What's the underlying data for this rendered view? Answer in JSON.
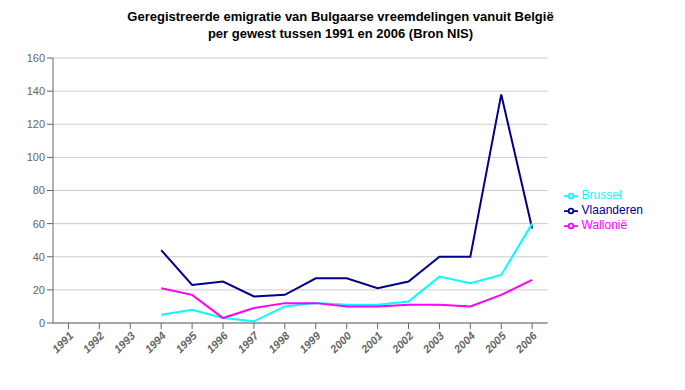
{
  "chart_data": {
    "type": "line",
    "title": "Geregistreerde emigratie van Bulgaarse vreemdelingen vanuit België\nper gewest tussen 1991 en 2006 (Bron NIS)",
    "x": [
      1991,
      1992,
      1993,
      1994,
      1995,
      1996,
      1997,
      1998,
      1999,
      2000,
      2001,
      2002,
      2003,
      2004,
      2005,
      2006
    ],
    "series": [
      {
        "name": "Vlaanderen",
        "color": "#00008B",
        "values": [
          null,
          null,
          null,
          44,
          23,
          25,
          16,
          17,
          27,
          27,
          21,
          25,
          40,
          40,
          138,
          57
        ]
      },
      {
        "name": "Brussel",
        "color": "#00FFFF",
        "values": [
          null,
          null,
          null,
          5,
          8,
          3,
          1,
          10,
          12,
          11,
          11,
          13,
          28,
          24,
          29,
          60
        ]
      },
      {
        "name": "Wallonië",
        "color": "#FF00FF",
        "values": [
          null,
          null,
          null,
          21,
          17,
          3,
          9,
          12,
          12,
          10,
          10,
          11,
          11,
          10,
          17,
          26
        ]
      }
    ],
    "xlim": [
      1990.5,
      2006.5
    ],
    "xticks": [
      1991,
      1992,
      1993,
      1994,
      1995,
      1996,
      1997,
      1998,
      1999,
      2000,
      2001,
      2002,
      2003,
      2004,
      2005,
      2006
    ],
    "ylim": [
      0,
      160
    ],
    "yticks": [
      0,
      20,
      40,
      60,
      80,
      100,
      120,
      140,
      160
    ],
    "grid": true,
    "legend": "right"
  }
}
